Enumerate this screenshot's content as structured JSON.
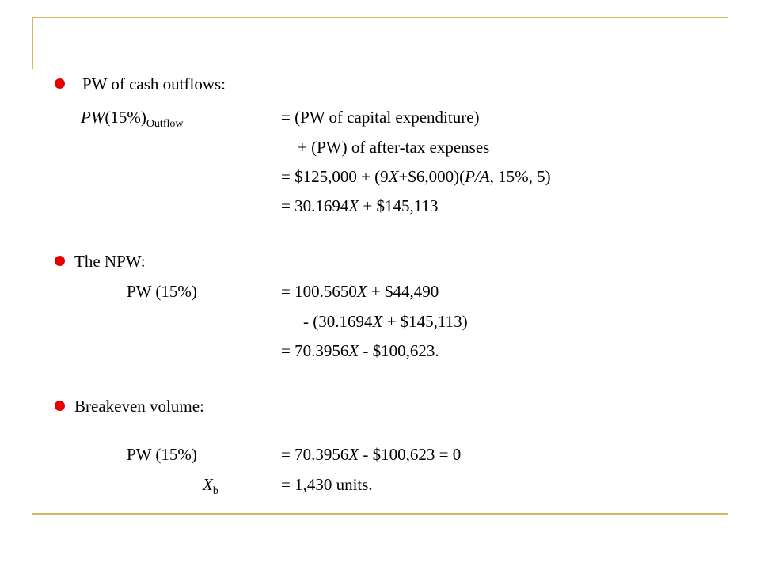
{
  "colors": {
    "rule": "#d2ba5a",
    "bullet": "#e80000"
  },
  "section1": {
    "heading": "PW of cash outflows:",
    "lhs_prefix": "PW",
    "lhs_rate": "(15%)",
    "lhs_sub": "Outflow",
    "line1": "= (PW of capital expenditure)",
    "line2": "+ (PW) of after-tax expenses",
    "line3_a": "= $125,000 + (9",
    "line3_x": "X",
    "line3_b": "+$6,000)(",
    "line3_pa": "P/A",
    "line3_c": ", 15%, 5)",
    "line4_a": "= 30.1694",
    "line4_x": "X",
    "line4_b": " + $145,113"
  },
  "section2": {
    "heading": "The NPW:",
    "lhs": "PW (15%)",
    "line1_a": "= 100.5650",
    "line1_x": "X",
    "line1_b": " + $44,490",
    "line2_a": "- (30.1694",
    "line2_x": "X",
    "line2_b": " + $145,113)",
    "line3_a": "= 70.3956",
    "line3_x": "X",
    "line3_b": " - $100,623."
  },
  "section3": {
    "heading": "Breakeven volume:",
    "lhs1": "PW (15%)",
    "line1_a": "= 70.3956",
    "line1_x": "X",
    "line1_b": " - $100,623 = 0",
    "lhs2_var": "X",
    "lhs2_sub": "b",
    "line2": "= 1,430 units."
  }
}
